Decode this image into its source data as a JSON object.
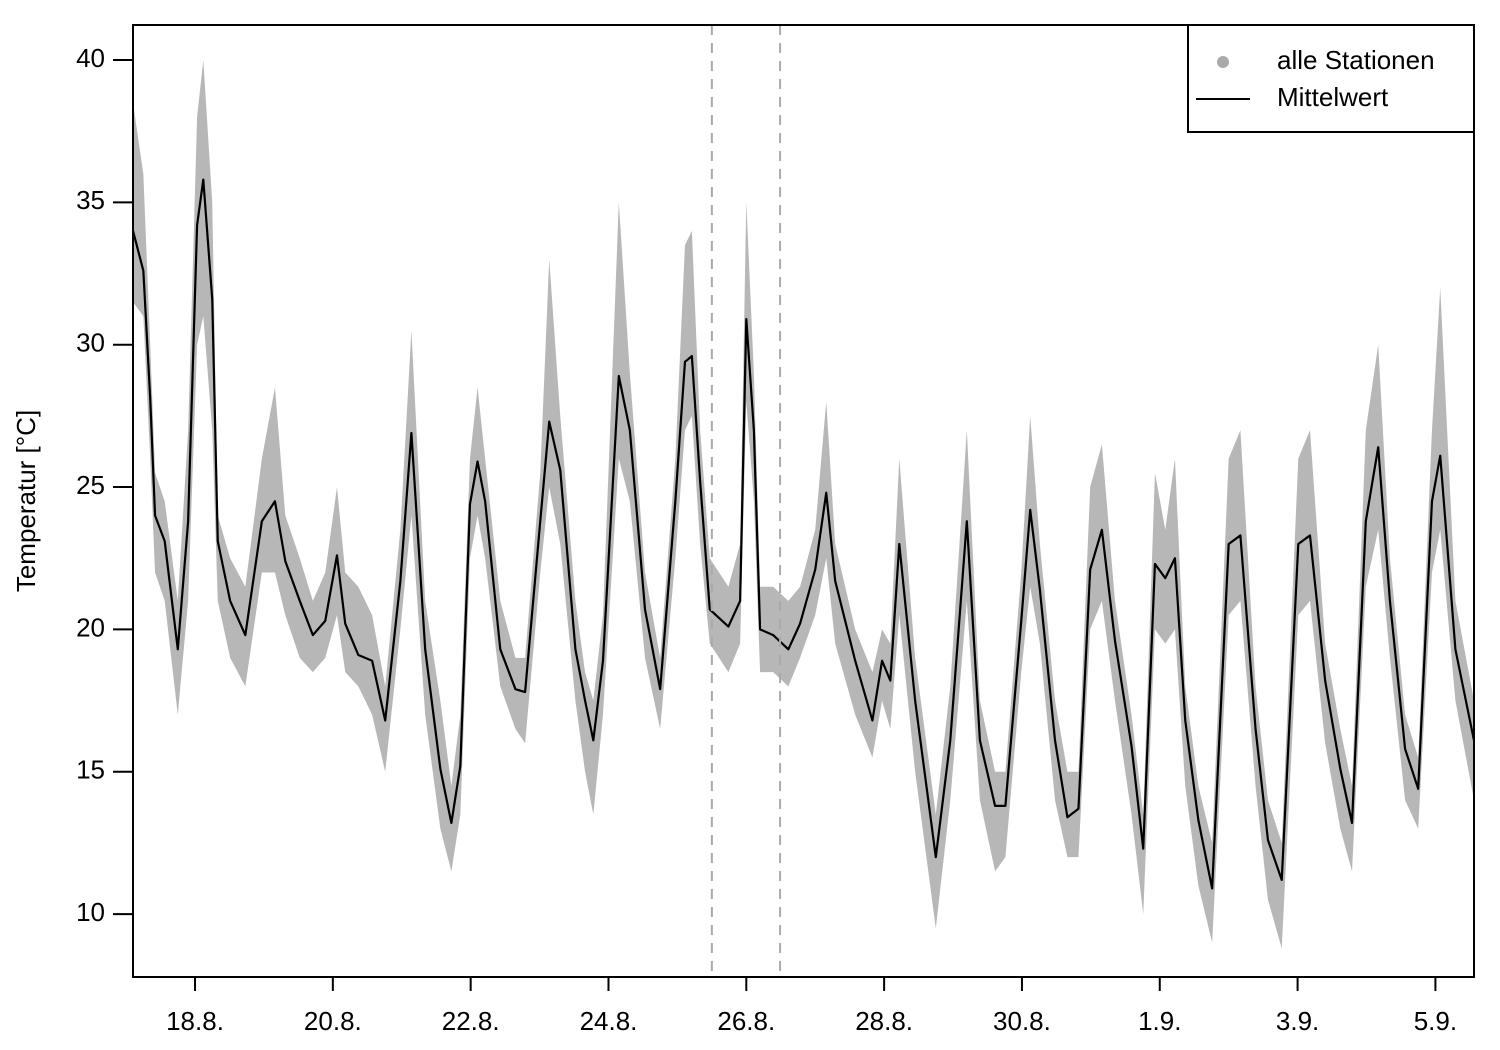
{
  "chart_data": {
    "type": "line",
    "ylabel": "Temperatur [°C]",
    "x": [
      17.1,
      17.25,
      17.35,
      17.42,
      17.56,
      17.75,
      17.9,
      18.03,
      18.12,
      18.25,
      18.33,
      18.51,
      18.73,
      18.97,
      19.16,
      19.31,
      19.52,
      19.71,
      19.89,
      20.06,
      20.18,
      20.37,
      20.57,
      20.76,
      20.98,
      21.14,
      21.34,
      21.56,
      21.72,
      21.85,
      21.99,
      22.1,
      22.21,
      22.43,
      22.65,
      22.79,
      23.01,
      23.14,
      23.3,
      23.52,
      23.66,
      23.78,
      23.92,
      24.15,
      24.31,
      24.53,
      24.75,
      24.97,
      25.11,
      25.21,
      25.33,
      25.47,
      25.74,
      25.91,
      26.0,
      26.11,
      26.2,
      26.39,
      26.61,
      26.78,
      27.0,
      27.16,
      27.29,
      27.58,
      27.83,
      27.97,
      28.09,
      28.22,
      28.45,
      28.75,
      28.96,
      29.2,
      29.39,
      29.61,
      29.76,
      29.99,
      30.12,
      30.26,
      30.48,
      30.66,
      30.82,
      30.99,
      31.16,
      31.35,
      31.59,
      31.76,
      31.93,
      32.08,
      32.22,
      32.37,
      32.56,
      32.76,
      33.0,
      33.17,
      33.39,
      33.57,
      33.77,
      34.01,
      34.18,
      34.4,
      34.62,
      34.79,
      34.99,
      35.17,
      35.34,
      35.56,
      35.75,
      35.95,
      36.07,
      36.29,
      36.56
    ],
    "series": [
      {
        "name": "alle Stationen",
        "type": "band",
        "color": "#aaaaaa",
        "high": [
          38.5,
          36,
          30,
          25.5,
          24.5,
          21,
          27,
          38,
          40,
          35,
          24,
          22.5,
          21.5,
          26,
          28.5,
          24,
          22.5,
          21,
          22,
          25,
          22,
          21.5,
          20.5,
          18,
          23.5,
          30.5,
          21,
          17.5,
          14.5,
          17,
          26,
          28.5,
          26,
          21,
          19,
          19,
          25.5,
          33,
          27.5,
          21,
          18.5,
          17.5,
          20.5,
          35,
          29,
          22,
          19,
          26,
          33.5,
          34,
          27,
          22.5,
          21.5,
          23,
          35,
          29,
          21.5,
          21.5,
          21,
          21.5,
          23.5,
          28,
          23,
          20,
          18.5,
          20,
          19.5,
          26,
          19,
          13.5,
          18,
          27,
          17.5,
          15,
          15,
          22,
          27.5,
          23,
          17.5,
          15,
          15,
          25,
          26.5,
          21,
          17,
          13.5,
          25.5,
          23.5,
          26,
          18,
          14.5,
          12.5,
          26,
          27,
          18,
          14,
          12.5,
          26,
          27,
          19.5,
          16.5,
          14.5,
          27,
          30,
          22.5,
          17,
          15.5,
          27,
          32,
          21,
          17.5
        ],
        "low": [
          31.5,
          31,
          26,
          22,
          21,
          17,
          21,
          30,
          31,
          27,
          21,
          19,
          18,
          22,
          22,
          20.5,
          19,
          18.5,
          19,
          20.5,
          18.5,
          18,
          17,
          15,
          20,
          24,
          17,
          13,
          11.5,
          13.5,
          22.5,
          24,
          22.5,
          18,
          16.5,
          16,
          22,
          25,
          23,
          17.5,
          15,
          13.5,
          17,
          26,
          24.5,
          19,
          16.5,
          22.5,
          27,
          27.5,
          23,
          19.5,
          18.5,
          19.5,
          28,
          24.5,
          18.5,
          18.5,
          18,
          19,
          20.5,
          22.5,
          19.5,
          17,
          15.5,
          17.5,
          16.5,
          20.5,
          15,
          9.5,
          14,
          21,
          14,
          11.5,
          12,
          18.5,
          21.5,
          19.5,
          14,
          12,
          12,
          20,
          21,
          17.5,
          13.5,
          10,
          20,
          19.5,
          20,
          14.5,
          11,
          9,
          20.5,
          21,
          14.5,
          10.5,
          8.8,
          20.5,
          21,
          16,
          13,
          11.5,
          21.5,
          23.5,
          19,
          14,
          13,
          22,
          23.5,
          17.5,
          14
        ]
      },
      {
        "name": "Mittelwert",
        "type": "line",
        "color": "#000000",
        "values": [
          34.0,
          32.6,
          28.1,
          24.0,
          23.1,
          19.3,
          23.8,
          34.2,
          35.8,
          31.6,
          23.1,
          21.0,
          19.8,
          23.8,
          24.5,
          22.4,
          21.0,
          19.8,
          20.3,
          22.6,
          20.2,
          19.1,
          18.9,
          16.8,
          21.7,
          26.9,
          19.3,
          15.1,
          13.2,
          15.2,
          24.4,
          25.9,
          24.5,
          19.3,
          17.9,
          17.8,
          23.8,
          27.3,
          25.6,
          19.3,
          17.5,
          16.1,
          18.9,
          28.9,
          27.0,
          20.7,
          17.9,
          24.5,
          29.4,
          29.6,
          25.2,
          20.7,
          20.1,
          21.0,
          30.9,
          27.0,
          20.0,
          19.8,
          19.3,
          20.2,
          22.1,
          24.8,
          21.7,
          18.9,
          16.8,
          18.9,
          18.2,
          23.0,
          17.5,
          12.0,
          16.1,
          23.8,
          16.1,
          13.8,
          13.8,
          20.3,
          24.2,
          21.4,
          16.1,
          13.4,
          13.7,
          22.1,
          23.5,
          19.6,
          15.9,
          12.3,
          22.3,
          21.8,
          22.5,
          16.8,
          13.3,
          10.9,
          23.0,
          23.3,
          16.5,
          12.6,
          11.2,
          23.0,
          23.3,
          18.2,
          15.1,
          13.2,
          23.8,
          26.4,
          21.0,
          15.8,
          14.4,
          24.5,
          26.1,
          19.3,
          16.1
        ]
      }
    ],
    "xlim": [
      17.1,
      36.56
    ],
    "xticks": [
      {
        "value": 18,
        "label": "18.8."
      },
      {
        "value": 20,
        "label": "20.8."
      },
      {
        "value": 22,
        "label": "22.8."
      },
      {
        "value": 24,
        "label": "24.8."
      },
      {
        "value": 26,
        "label": "26.8."
      },
      {
        "value": 28,
        "label": "28.8."
      },
      {
        "value": 30,
        "label": "30.8."
      },
      {
        "value": 32,
        "label": "1.9."
      },
      {
        "value": 34,
        "label": "3.9."
      },
      {
        "value": 36,
        "label": "5.9."
      }
    ],
    "ylim": [
      7.79,
      41.23
    ],
    "yticks": [
      10,
      15,
      20,
      25,
      30,
      35,
      40
    ],
    "vlines": [
      25.5,
      26.49
    ],
    "legend": "top-right"
  }
}
